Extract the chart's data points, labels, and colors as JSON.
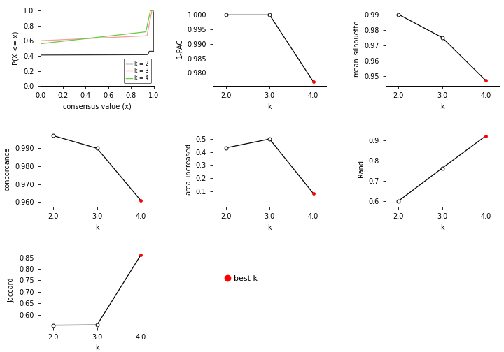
{
  "ecdf": {
    "colors": {
      "k2": "#333333",
      "k3": "#ff9999",
      "k4": "#66cc44"
    },
    "xlabel": "consensus value (x)",
    "ylabel": "P(X <= x)",
    "ylim": [
      0.0,
      1.0
    ],
    "xlim": [
      0.0,
      1.0
    ],
    "legend_labels": [
      "k = 2",
      "k = 3",
      "k = 4"
    ],
    "xticks": [
      0.0,
      0.2,
      0.4,
      0.6,
      0.8,
      1.0
    ],
    "yticks": [
      0.0,
      0.2,
      0.4,
      0.6,
      0.8,
      1.0
    ]
  },
  "pac": {
    "k": [
      2,
      3,
      4
    ],
    "values": [
      1.0,
      1.0,
      0.977
    ],
    "best_k": 4,
    "ylabel": "1-PAC",
    "xlabel": "k",
    "ylim": [
      0.9755,
      1.0015
    ],
    "yticks": [
      0.98,
      0.985,
      0.99,
      0.995,
      1.0
    ],
    "xlim": [
      1.7,
      4.3
    ]
  },
  "silhouette": {
    "k": [
      2,
      3,
      4
    ],
    "values": [
      0.99,
      0.975,
      0.947
    ],
    "best_k": 4,
    "ylabel": "mean_silhouette",
    "xlabel": "k",
    "ylim": [
      0.9435,
      0.9925
    ],
    "yticks": [
      0.95,
      0.96,
      0.97,
      0.98,
      0.99
    ],
    "xlim": [
      1.7,
      4.3
    ]
  },
  "concordance": {
    "k": [
      2,
      3,
      4
    ],
    "values": [
      0.997,
      0.99,
      0.961
    ],
    "best_k": 4,
    "ylabel": "concordance",
    "xlabel": "k",
    "ylim": [
      0.9575,
      0.9995
    ],
    "yticks": [
      0.96,
      0.97,
      0.98,
      0.99
    ],
    "xlim": [
      1.7,
      4.3
    ]
  },
  "area_increased": {
    "k": [
      2,
      3,
      4
    ],
    "values": [
      0.432,
      0.5,
      0.082
    ],
    "best_k": 4,
    "ylabel": "area_increased",
    "xlabel": "k",
    "ylim": [
      -0.02,
      0.56
    ],
    "yticks": [
      0.1,
      0.2,
      0.3,
      0.4,
      0.5
    ],
    "xlim": [
      1.7,
      4.3
    ]
  },
  "rand": {
    "k": [
      2,
      3,
      4
    ],
    "values": [
      0.6,
      0.762,
      0.921
    ],
    "best_k": 4,
    "ylabel": "Rand",
    "xlabel": "k",
    "ylim": [
      0.572,
      0.944
    ],
    "yticks": [
      0.6,
      0.7,
      0.8,
      0.9
    ],
    "xlim": [
      1.7,
      4.3
    ]
  },
  "jaccard": {
    "k": [
      2,
      3,
      4
    ],
    "values": [
      0.555,
      0.556,
      0.86
    ],
    "best_k": 4,
    "ylabel": "Jaccard",
    "xlabel": "k",
    "ylim": [
      0.5455,
      0.874
    ],
    "yticks": [
      0.6,
      0.65,
      0.7,
      0.75,
      0.8,
      0.85
    ],
    "xlim": [
      1.7,
      4.3
    ]
  },
  "best_k_legend": {
    "label": "best k",
    "color": "red"
  },
  "font_size": 7,
  "marker_size": 3.5,
  "line_width": 0.9
}
